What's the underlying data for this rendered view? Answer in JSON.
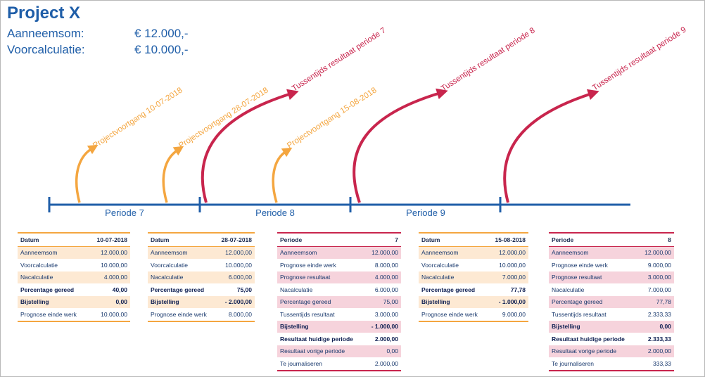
{
  "project": {
    "title": "Project X",
    "summary": [
      {
        "label": "Aanneemsom:",
        "value": "€ 12.000,-"
      },
      {
        "label": "Voorcalculatie:",
        "value": "€ 10.000,-"
      }
    ]
  },
  "colors": {
    "blue": "#1f5ea8",
    "orange": "#f4a640",
    "red": "#c8254d",
    "orange_shade": "#fde9d3",
    "red_shade": "#f6d3dc"
  },
  "timeline": {
    "periods": [
      "Periode 7",
      "Periode 8",
      "Periode 9"
    ],
    "events": [
      {
        "label": "Projectvoortgang 10-07-2018",
        "kind": "orange"
      },
      {
        "label": "Projectvoortgang 28-07-2018",
        "kind": "orange"
      },
      {
        "label": "Tussentijds resultaat periode 7",
        "kind": "red"
      },
      {
        "label": "Projectvoortgang 15-08-2018",
        "kind": "orange"
      },
      {
        "label": "Tussentijds resultaat periode 8",
        "kind": "red"
      },
      {
        "label": "Tussentijds resultaat periode 9",
        "kind": "red"
      }
    ]
  },
  "tables": [
    {
      "kind": "orange",
      "header": [
        "Datum",
        "10-07-2018"
      ],
      "rows": [
        {
          "label": "Aanneemsom",
          "value": "12.000,00",
          "shade": true
        },
        {
          "label": "Voorcalculatie",
          "value": "10.000,00"
        },
        {
          "label": "Nacalculatie",
          "value": "4.000,00",
          "shade": true
        },
        {
          "label": "Percentage gereed",
          "value": "40,00",
          "bold": true
        },
        {
          "label": "Bijstelling",
          "value": "0,00",
          "bold": true,
          "shade": true
        },
        {
          "label": "Prognose einde werk",
          "value": "10.000,00"
        }
      ]
    },
    {
      "kind": "orange",
      "header": [
        "Datum",
        "28-07-2018"
      ],
      "rows": [
        {
          "label": "Aanneemsom",
          "value": "12.000,00",
          "shade": true
        },
        {
          "label": "Voorcalculatie",
          "value": "10.000,00"
        },
        {
          "label": "Nacalculatie",
          "value": "6.000,00",
          "shade": true
        },
        {
          "label": "Percentage gereed",
          "value": "75,00",
          "bold": true
        },
        {
          "label": "Bijstelling",
          "value": "- 2.000,00",
          "bold": true,
          "shade": true
        },
        {
          "label": "Prognose einde werk",
          "value": "8.000,00"
        }
      ]
    },
    {
      "kind": "red",
      "header": [
        "Periode",
        "7"
      ],
      "rows": [
        {
          "label": "Aanneemsom",
          "value": "12.000,00",
          "shade": true
        },
        {
          "label": "Prognose einde werk",
          "value": "8.000,00"
        },
        {
          "label": "Prognose resultaat",
          "value": "4.000,00",
          "shade": true
        },
        {
          "label": "Nacalculatie",
          "value": "6.000,00"
        },
        {
          "label": "Percentage gereed",
          "value": "75,00",
          "shade": true
        },
        {
          "label": "Tussentijds resultaat",
          "value": "3.000,00"
        },
        {
          "label": "Bijstelling",
          "value": "- 1.000,00",
          "bold": true,
          "shade": true
        },
        {
          "label": "Resultaat huidige periode",
          "value": "2.000,00",
          "bold": true
        },
        {
          "label": "Resultaat vorige periode",
          "value": "0,00",
          "shade": true
        },
        {
          "label": "Te journaliseren",
          "value": "2.000,00"
        }
      ]
    },
    {
      "kind": "orange",
      "header": [
        "Datum",
        "15-08-2018"
      ],
      "rows": [
        {
          "label": "Aanneemsom",
          "value": "12.000,00",
          "shade": true
        },
        {
          "label": "Voorcalculatie",
          "value": "10.000,00"
        },
        {
          "label": "Nacalculatie",
          "value": "7.000,00",
          "shade": true
        },
        {
          "label": "Percentage gereed",
          "value": "77,78",
          "bold": true
        },
        {
          "label": "Bijstelling",
          "value": "- 1.000,00",
          "bold": true,
          "shade": true
        },
        {
          "label": "Prognose einde werk",
          "value": "9.000,00"
        }
      ]
    },
    {
      "kind": "red",
      "header": [
        "Periode",
        "8"
      ],
      "rows": [
        {
          "label": "Aanneemsom",
          "value": "12.000,00",
          "shade": true
        },
        {
          "label": "Prognose einde werk",
          "value": "9.000,00"
        },
        {
          "label": "Prognose resultaat",
          "value": "3.000,00",
          "shade": true
        },
        {
          "label": "Nacalculatie",
          "value": "7.000,00"
        },
        {
          "label": "Percentage gereed",
          "value": "77,78",
          "shade": true
        },
        {
          "label": "Tussentijds resultaat",
          "value": "2.333,33"
        },
        {
          "label": "Bijstelling",
          "value": "0,00",
          "bold": true,
          "shade": true
        },
        {
          "label": "Resultaat huidige periode",
          "value": "2.333,33",
          "bold": true
        },
        {
          "label": "Resultaat vorige periode",
          "value": "2.000,00",
          "shade": true
        },
        {
          "label": "Te journaliseren",
          "value": "333,33"
        }
      ]
    }
  ]
}
